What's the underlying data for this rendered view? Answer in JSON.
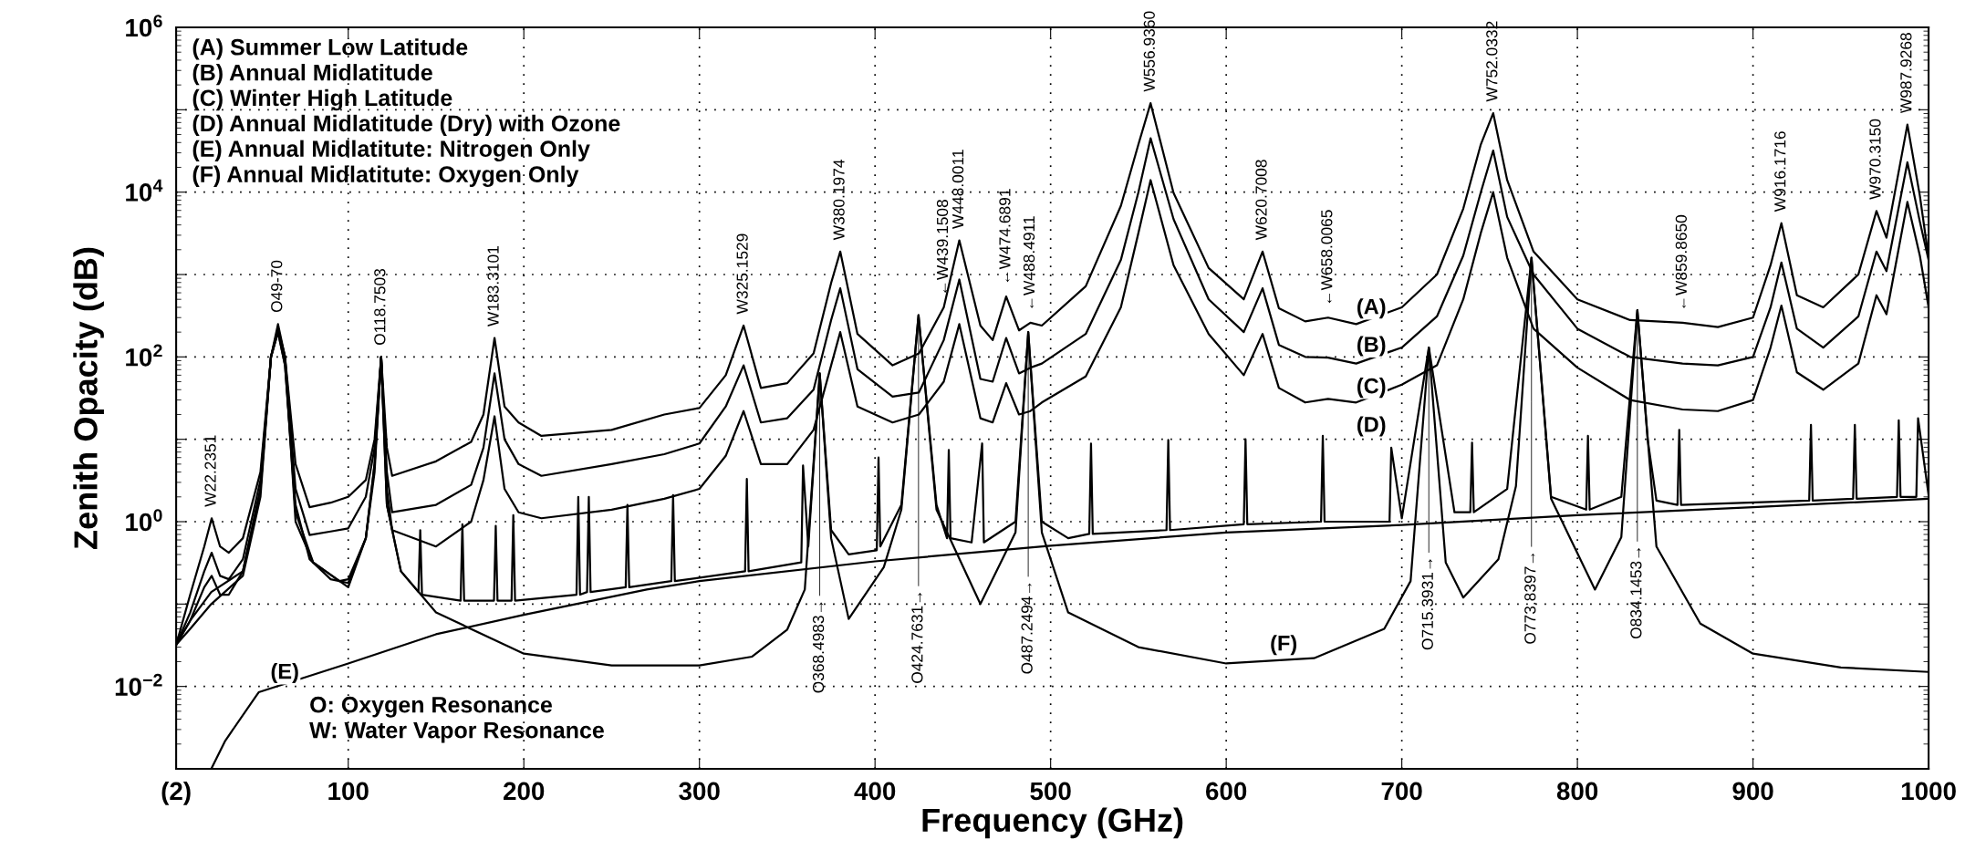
{
  "chart_data": {
    "type": "line",
    "xlabel": "Frequency (GHz)",
    "ylabel": "Zenith Opacity (dB)",
    "log": "y",
    "grid": true,
    "marker": "none",
    "line_style": "solid",
    "xlim": [
      2,
      1000
    ],
    "xticks": [
      {
        "value": 2,
        "label": "(2)"
      },
      100,
      200,
      300,
      400,
      500,
      600,
      700,
      800,
      900,
      1000
    ],
    "ylim": [
      0.001,
      1000000
    ],
    "yticks": [
      {
        "value": 0.01,
        "label": "10$^{−2}$"
      },
      {
        "value": 0.1,
        "label": null
      },
      {
        "value": 1,
        "label": "10$^{0}$"
      },
      {
        "value": 10,
        "label": null
      },
      {
        "value": 100,
        "label": "10$^{2}$"
      },
      {
        "value": 1000,
        "label": null
      },
      {
        "value": 10000,
        "label": "10$^{4}$"
      },
      {
        "value": 100000,
        "label": null
      },
      {
        "value": 1000000,
        "label": "10$^{6}$"
      }
    ],
    "x": [
      2,
      10,
      18,
      22.2351,
      27,
      32,
      40,
      50,
      56,
      60,
      64,
      70,
      78,
      90,
      100,
      110,
      115,
      118.7503,
      122,
      125,
      150,
      170,
      177,
      183.3101,
      189,
      197,
      210,
      250,
      280,
      300,
      315,
      325.1529,
      335,
      350,
      365,
      375,
      380.1974,
      390,
      410,
      425,
      439.1508,
      448.0011,
      460,
      467,
      474.6891,
      482,
      488.4911,
      495,
      520,
      540,
      550,
      556.936,
      570,
      590,
      610,
      620.7008,
      630,
      645,
      658.0065,
      674,
      700,
      720,
      735,
      745,
      752.0332,
      760,
      775,
      800,
      830,
      859.865,
      880,
      900,
      910,
      916.1716,
      925,
      940,
      960,
      970.315,
      976,
      987.9268,
      995,
      1000
    ],
    "series": [
      {
        "name": "(A)",
        "color": "#000000",
        "values": [
          0.032,
          0.13,
          0.5,
          1.1,
          0.5,
          0.42,
          0.63,
          4,
          100,
          250,
          100,
          5,
          1.5,
          1.7,
          2,
          3.2,
          10,
          100,
          7.9,
          3.6,
          5.4,
          9.3,
          20,
          170,
          25,
          16,
          11,
          13,
          20,
          24,
          60,
          240,
          42,
          48,
          110,
          790,
          1900,
          190,
          79,
          110,
          400,
          2600,
          240,
          160,
          540,
          210,
          260,
          240,
          720,
          6800,
          38000,
          120000,
          9800,
          1200,
          500,
          1900,
          390,
          270,
          300,
          250,
          400,
          1000,
          6300,
          38000,
          91000,
          14000,
          1900,
          500,
          280,
          260,
          230,
          300,
          1300,
          4200,
          560,
          400,
          1000,
          5900,
          2800,
          66000,
          9100,
          1600
        ]
      },
      {
        "name": "(B)",
        "color": "#000000",
        "values": [
          0.032,
          0.079,
          0.25,
          0.42,
          0.22,
          0.2,
          0.35,
          3.2,
          100,
          220,
          100,
          2.5,
          0.69,
          0.76,
          0.83,
          2,
          7.9,
          100,
          4,
          1.3,
          1.6,
          2.8,
          7.9,
          63,
          10,
          5,
          3.6,
          5,
          6.6,
          8.9,
          25,
          79,
          16,
          18,
          40,
          280,
          680,
          71,
          33,
          37,
          160,
          870,
          54,
          50,
          170,
          63,
          74,
          83,
          190,
          1500,
          10000,
          45000,
          4700,
          500,
          200,
          680,
          140,
          100,
          98,
          83,
          130,
          310,
          1700,
          10000,
          32000,
          5000,
          1000,
          220,
          100,
          83,
          79,
          100,
          400,
          1400,
          220,
          130,
          310,
          1900,
          1100,
          23000,
          4400,
          1500
        ]
      },
      {
        "name": "(C)",
        "color": "#000000",
        "values": [
          0.032,
          0.063,
          0.16,
          0.22,
          0.13,
          0.13,
          0.25,
          2.5,
          100,
          200,
          79,
          1.6,
          0.35,
          0.2,
          0.18,
          0.63,
          5,
          100,
          2.5,
          0.79,
          0.5,
          1,
          3.2,
          19,
          2.5,
          1.3,
          1.1,
          1.4,
          1.9,
          2.5,
          6.3,
          22,
          5,
          5,
          13,
          79,
          200,
          25,
          16,
          20,
          50,
          250,
          18,
          16,
          48,
          20,
          22,
          28,
          58,
          400,
          3200,
          14000,
          1300,
          190,
          60,
          190,
          42,
          28,
          31,
          28,
          46,
          79,
          500,
          3200,
          10000,
          1600,
          220,
          74,
          30,
          23,
          22,
          30,
          130,
          420,
          65,
          40,
          83,
          560,
          330,
          7600,
          1700,
          400
        ]
      },
      {
        "name": "(D)",
        "color": "#000000",
        "x": [
          2,
          10,
          22,
          40,
          50,
          56,
          60,
          64,
          70,
          80,
          95,
          100,
          110,
          115,
          118.7503,
          122,
          130,
          140,
          141,
          142,
          164,
          165,
          166,
          183,
          184,
          185,
          193,
          194,
          195,
          230,
          231,
          232,
          236,
          237,
          238,
          258,
          259,
          260,
          284,
          285,
          286,
          326,
          327,
          328,
          358,
          359,
          362,
          368.4983,
          375,
          385,
          401,
          402,
          403,
          415,
          424.7631,
          435,
          441,
          442,
          443,
          455,
          461,
          462,
          480,
          487.2494,
          495,
          510,
          522,
          523,
          524,
          566,
          567,
          568,
          610,
          611,
          612,
          654,
          655,
          656,
          693,
          694,
          700,
          715.3931,
          730,
          739,
          740,
          741,
          760,
          773.8397,
          785,
          805,
          806,
          807,
          825,
          834.1453,
          840,
          845,
          857,
          858,
          859,
          932,
          933,
          934,
          957,
          958,
          959,
          982,
          983,
          984,
          993,
          994,
          1000
        ],
        "values": [
          0.032,
          0.063,
          0.14,
          0.25,
          2.5,
          100,
          200,
          79,
          1.3,
          0.32,
          0.19,
          0.2,
          0.63,
          5,
          100,
          1.6,
          0.25,
          0.14,
          0.79,
          0.13,
          0.11,
          0.93,
          0.11,
          0.11,
          0.89,
          0.11,
          0.11,
          1.2,
          0.11,
          0.13,
          2,
          0.13,
          0.14,
          2,
          0.14,
          0.16,
          1.6,
          0.16,
          0.19,
          2.1,
          0.19,
          0.25,
          3.3,
          0.25,
          0.32,
          4.8,
          0.5,
          63,
          0.79,
          0.4,
          0.45,
          6,
          0.5,
          1.6,
          320,
          1.6,
          0.63,
          7.4,
          0.63,
          0.56,
          8.9,
          0.56,
          1,
          200,
          1,
          0.63,
          0.71,
          8.9,
          0.71,
          0.79,
          9.8,
          0.79,
          0.93,
          10,
          0.93,
          1,
          11,
          1,
          1,
          7.9,
          1.1,
          130,
          1.3,
          1.3,
          9.1,
          1.3,
          2.5,
          1600,
          2,
          1.4,
          11,
          1.4,
          2,
          370,
          10,
          1.8,
          1.6,
          13,
          1.6,
          1.8,
          15,
          1.8,
          1.9,
          15,
          1.9,
          2,
          17,
          2,
          2,
          18,
          2.1
        ]
      },
      {
        "name": "(E)",
        "color": "#000000",
        "x": [
          22,
          30,
          49,
          100,
          150,
          200,
          270,
          300,
          400,
          500,
          600,
          700,
          800,
          900,
          1000
        ],
        "values": [
          0.001,
          0.0022,
          0.0085,
          0.019,
          0.043,
          0.074,
          0.15,
          0.19,
          0.33,
          0.51,
          0.74,
          0.91,
          1.2,
          1.5,
          1.9
        ]
      },
      {
        "name": "(F)",
        "color": "#000000",
        "x": [
          2,
          10,
          22,
          40,
          50,
          56,
          60,
          64,
          70,
          80,
          100,
          110,
          115,
          118.7503,
          122,
          130,
          150,
          200,
          250,
          300,
          330,
          350,
          360,
          368.4983,
          375,
          385,
          405,
          415,
          424.7631,
          435,
          460,
          480,
          487.2494,
          495,
          510,
          550,
          600,
          650,
          690,
          705,
          715.3931,
          725,
          735,
          755,
          765,
          773.8397,
          785,
          810,
          825,
          834.1453,
          845,
          870,
          900,
          950,
          1000
        ],
        "values": [
          0.032,
          0.05,
          0.1,
          0.22,
          2,
          100,
          220,
          100,
          1,
          0.32,
          0.16,
          0.63,
          4,
          100,
          1.6,
          0.25,
          0.079,
          0.025,
          0.018,
          0.018,
          0.023,
          0.049,
          0.15,
          63,
          0.63,
          0.066,
          0.28,
          1.4,
          320,
          1.4,
          0.1,
          0.74,
          200,
          0.74,
          0.079,
          0.03,
          0.019,
          0.022,
          0.05,
          0.19,
          130,
          0.32,
          0.12,
          0.35,
          2.7,
          1600,
          1.9,
          0.15,
          0.65,
          370,
          0.5,
          0.058,
          0.025,
          0.017,
          0.015
        ]
      }
    ],
    "annotations": [
      "(A) Summer Low Latitude\n(B) Annual Midlatitude\n(C) Winter High Latitude\n(D) Annual Midlatitude (Dry) with Ozone\n(E) Annual Midlatitute: Nitrogen Only\n(F) Annual Midlatitute: Oxygen Only",
      "O: Oxygen Resonance\nW: Water Vapor Resonance",
      {
        "text": "W22.2351",
        "x": 22.2351,
        "y": 1.1
      },
      {
        "text": "O49-70",
        "x": 60,
        "y": 250
      },
      {
        "text": "O118.7503",
        "x": 118.7503,
        "y": 100
      },
      {
        "text": "W183.3101",
        "x": 183.3101,
        "y": 170
      },
      {
        "text": "W325.1529",
        "x": 325.1529,
        "y": 240
      },
      {
        "text": "W380.1974",
        "x": 380.1974,
        "y": 1900
      },
      {
        "text": "←W439.1508",
        "x": 439.1508,
        "y": 400
      },
      {
        "text": "W448.0011",
        "x": 448.0011,
        "y": 2600
      },
      {
        "text": "←W474.6891",
        "x": 474.6891,
        "y": 540
      },
      {
        "text": "←W488.4911",
        "x": 488.4911,
        "y": 260
      },
      {
        "text": "W556.9360",
        "x": 556.936,
        "y": 120000
      },
      {
        "text": "W620.7008",
        "x": 620.7008,
        "y": 1900
      },
      {
        "text": "←W658.0065",
        "x": 658.0065,
        "y": 300
      },
      {
        "text": "W752.0332",
        "x": 752.0332,
        "y": 91000
      },
      {
        "text": "←W859.8650",
        "x": 859.865,
        "y": 260
      },
      {
        "text": "W916.1716",
        "x": 916.1716,
        "y": 4200
      },
      {
        "text": "W970.3150",
        "x": 970.315,
        "y": 5900
      },
      {
        "text": "W987.9268",
        "x": 987.9268,
        "y": 66000
      },
      {
        "text": "O368.4983→",
        "x": 368.4983,
        "y": 63
      },
      {
        "text": "O424.7631→",
        "x": 424.7631,
        "y": 320
      },
      {
        "text": "O487.2494→",
        "x": 487.2494,
        "y": 200
      },
      {
        "text": "O715.3931→",
        "x": 715.3931,
        "y": 130
      },
      {
        "text": "O773.8397→",
        "x": 773.8397,
        "y": 1600
      },
      {
        "text": "O834.1453→",
        "x": 834.1453,
        "y": 370
      }
    ]
  }
}
